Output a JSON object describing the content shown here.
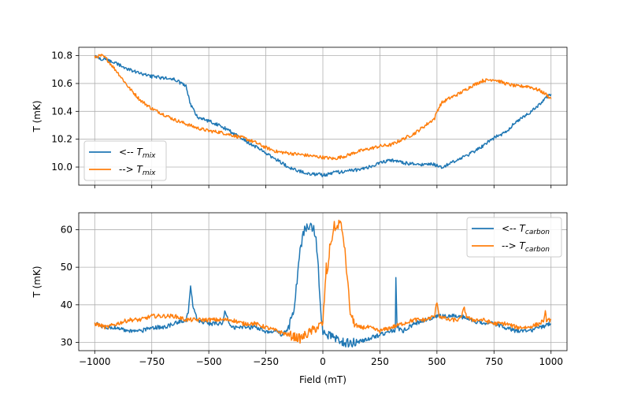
{
  "figure": {
    "xlabel": "Field (mT)"
  },
  "colors": {
    "series_down": "#1f77b4",
    "series_up": "#ff7f0e"
  },
  "chart_data": [
    {
      "type": "line",
      "ylabel": "T (mK)",
      "xlim": [
        -1070,
        1070
      ],
      "ylim": [
        9.87,
        10.86
      ],
      "xticks": [
        -1000,
        -750,
        -500,
        -250,
        0,
        250,
        500,
        750,
        1000
      ],
      "yticks": [
        10.0,
        10.2,
        10.4,
        10.6,
        10.8
      ],
      "ytick_labels": [
        "10.0",
        "10.2",
        "10.4",
        "10.6",
        "10.8"
      ],
      "show_xtick_labels": false,
      "grid": true,
      "legend_position": "lower-left",
      "series": [
        {
          "legend_prefix": "<-- ",
          "legend_symbol": "T",
          "legend_subscript": "mix",
          "color": "#1f77b4",
          "x": [
            1000,
            980,
            950,
            900,
            850,
            800,
            750,
            700,
            650,
            600,
            550,
            520,
            500,
            480,
            450,
            400,
            350,
            300,
            250,
            200,
            150,
            100,
            50,
            0,
            -20,
            -50,
            -100,
            -150,
            -200,
            -250,
            -300,
            -350,
            -400,
            -450,
            -500,
            -550,
            -580,
            -600,
            -650,
            -700,
            -750,
            -800,
            -850,
            -900,
            -950,
            -980,
            -1000
          ],
          "y": [
            10.52,
            10.5,
            10.45,
            10.38,
            10.33,
            10.25,
            10.21,
            10.15,
            10.1,
            10.06,
            10.02,
            10.0,
            10.01,
            10.02,
            10.02,
            10.02,
            10.03,
            10.05,
            10.03,
            10.0,
            9.98,
            9.97,
            9.96,
            9.94,
            9.95,
            9.95,
            9.97,
            10.0,
            10.05,
            10.1,
            10.15,
            10.2,
            10.25,
            10.3,
            10.33,
            10.36,
            10.45,
            10.58,
            10.63,
            10.64,
            10.65,
            10.67,
            10.7,
            10.74,
            10.77,
            10.78,
            10.8
          ]
        },
        {
          "legend_prefix": "--> ",
          "legend_symbol": "T",
          "legend_subscript": "mix",
          "color": "#ff7f0e",
          "x": [
            -1000,
            -970,
            -950,
            -900,
            -850,
            -800,
            -750,
            -700,
            -650,
            -600,
            -550,
            -500,
            -450,
            -400,
            -350,
            -300,
            -250,
            -200,
            -150,
            -100,
            -50,
            0,
            50,
            100,
            150,
            200,
            250,
            300,
            350,
            400,
            450,
            490,
            500,
            520,
            550,
            600,
            650,
            700,
            750,
            800,
            850,
            900,
            950,
            980,
            1000
          ],
          "y": [
            10.79,
            10.8,
            10.78,
            10.68,
            10.57,
            10.48,
            10.42,
            10.38,
            10.34,
            10.31,
            10.28,
            10.26,
            10.25,
            10.23,
            10.21,
            10.18,
            10.14,
            10.11,
            10.1,
            10.09,
            10.08,
            10.07,
            10.06,
            10.08,
            10.11,
            10.13,
            10.15,
            10.16,
            10.2,
            10.24,
            10.3,
            10.35,
            10.4,
            10.46,
            10.49,
            10.53,
            10.58,
            10.62,
            10.63,
            10.6,
            10.58,
            10.58,
            10.55,
            10.52,
            10.49
          ]
        }
      ]
    },
    {
      "type": "line",
      "ylabel": "T (mK)",
      "xlim": [
        -1070,
        1070
      ],
      "ylim": [
        27.8,
        64.5
      ],
      "xticks": [
        -1000,
        -750,
        -500,
        -250,
        0,
        250,
        500,
        750,
        1000
      ],
      "xtick_labels": [
        "−1000",
        "−750",
        "−500",
        "−250",
        "0",
        "250",
        "500",
        "750",
        "1000"
      ],
      "yticks": [
        30,
        40,
        50,
        60
      ],
      "ytick_labels": [
        "30",
        "40",
        "50",
        "60"
      ],
      "show_xtick_labels": true,
      "grid": true,
      "legend_position": "upper-right",
      "series": [
        {
          "legend_prefix": "<-- ",
          "legend_symbol": "T",
          "legend_subscript": "carbon",
          "color": "#1f77b4",
          "x": [
            1000,
            950,
            900,
            850,
            800,
            750,
            700,
            650,
            600,
            550,
            500,
            450,
            400,
            350,
            325,
            320,
            318,
            315,
            300,
            250,
            200,
            150,
            120,
            100,
            50,
            20,
            0,
            -10,
            -20,
            -30,
            -40,
            -50,
            -60,
            -70,
            -80,
            -90,
            -100,
            -110,
            -120,
            -130,
            -150,
            -180,
            -200,
            -250,
            -300,
            -350,
            -400,
            -430,
            -440,
            -450,
            -480,
            -500,
            -550,
            -570,
            -580,
            -590,
            -600,
            -650,
            -700,
            -750,
            -800,
            -850,
            -900,
            -950,
            -1000
          ],
          "y": [
            35,
            34,
            33,
            33,
            34,
            35,
            35,
            36,
            37,
            37,
            37,
            36,
            35,
            33,
            34,
            47,
            35,
            33,
            33,
            32,
            31,
            30,
            30,
            30,
            31,
            32,
            33,
            38,
            50,
            57,
            60,
            61,
            61,
            61,
            60,
            58,
            54,
            49,
            42,
            38,
            34,
            32,
            33,
            33,
            34,
            34,
            34,
            38,
            35,
            35,
            35,
            35,
            36,
            40,
            45,
            38,
            36,
            35,
            34,
            34,
            33,
            33,
            34,
            34,
            35
          ]
        },
        {
          "legend_prefix": "--> ",
          "legend_symbol": "T",
          "legend_subscript": "carbon",
          "color": "#ff7f0e",
          "x": [
            -1000,
            -950,
            -900,
            -850,
            -800,
            -750,
            -700,
            -650,
            -600,
            -550,
            -500,
            -450,
            -400,
            -350,
            -300,
            -250,
            -200,
            -150,
            -100,
            -50,
            0,
            10,
            15,
            20,
            25,
            30,
            40,
            50,
            60,
            70,
            80,
            90,
            100,
            110,
            120,
            130,
            150,
            200,
            250,
            300,
            350,
            400,
            450,
            490,
            500,
            510,
            550,
            600,
            620,
            630,
            650,
            700,
            750,
            800,
            850,
            900,
            950,
            970,
            975,
            980,
            1000
          ],
          "y": [
            35,
            34,
            35,
            36,
            36,
            37,
            37,
            37,
            36,
            36,
            36,
            36,
            36,
            35,
            35,
            34,
            33,
            32,
            31,
            33,
            35,
            45,
            50,
            48,
            52,
            55,
            58,
            61,
            60,
            62,
            61,
            58,
            52,
            45,
            38,
            36,
            34,
            34,
            33,
            34,
            35,
            36,
            36,
            37,
            41,
            37,
            36,
            36,
            39,
            37,
            36,
            36,
            35,
            35,
            34,
            34,
            35,
            36,
            38,
            36,
            36
          ]
        }
      ]
    }
  ]
}
